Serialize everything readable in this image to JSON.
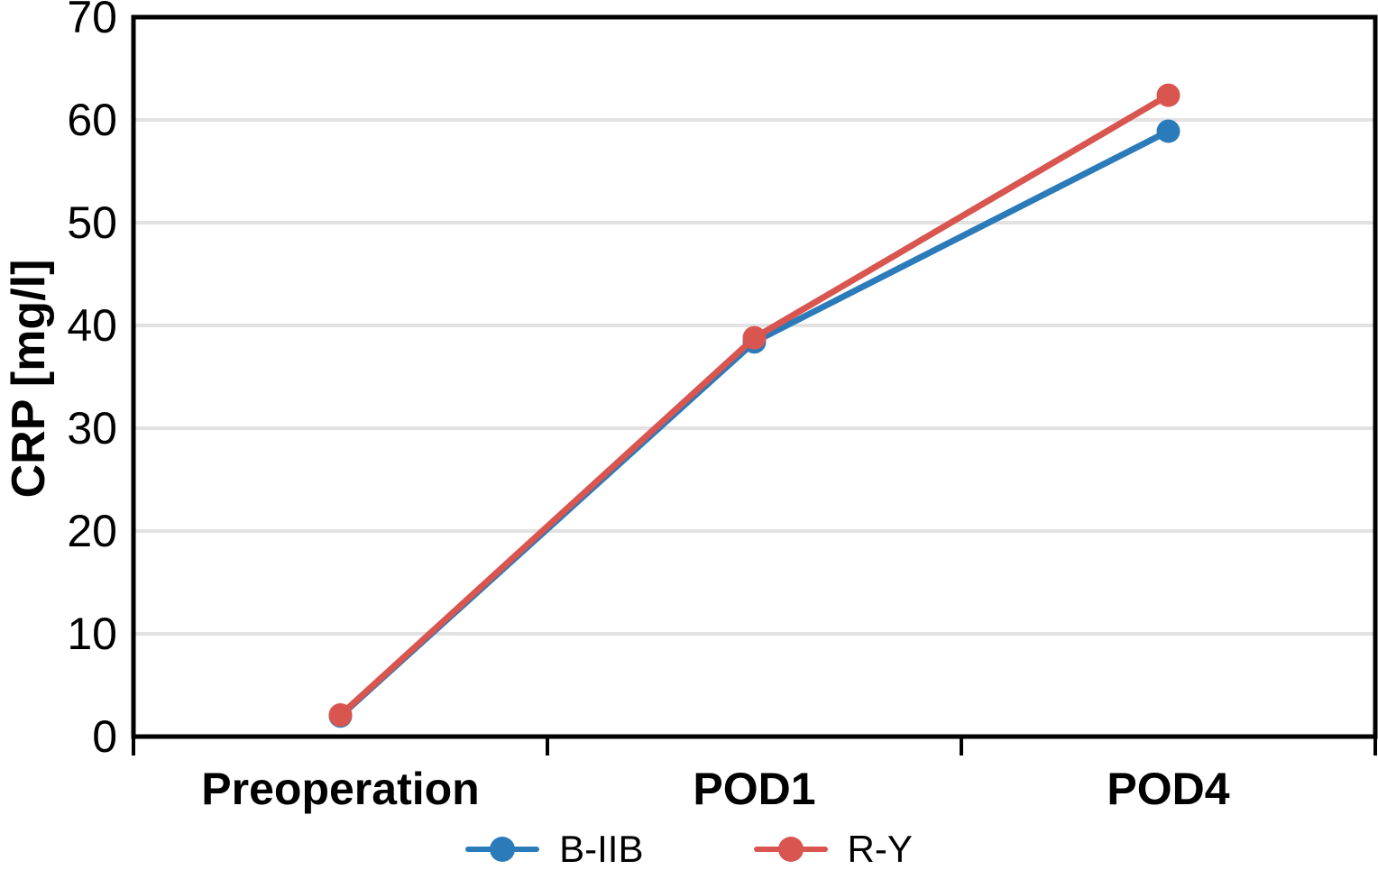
{
  "chart_data": {
    "type": "line",
    "title": "",
    "categories": [
      "Preoperation",
      "POD1",
      "POD4"
    ],
    "series": [
      {
        "name": "B-IIB",
        "color": "#2B7BBA",
        "values": [
          2.0,
          38.4,
          58.9
        ]
      },
      {
        "name": "R-Y",
        "color": "#D95550",
        "values": [
          2.1,
          38.8,
          62.4
        ]
      }
    ],
    "xlabel": "",
    "ylabel": "CRP [mg/l]",
    "ylim": [
      0,
      70
    ],
    "yticks": [
      0,
      10,
      20,
      30,
      40,
      50,
      60,
      70
    ],
    "grid": "horizontal gridlines at each y tick",
    "legend_position": "bottom center",
    "colors": {
      "axis": "#000000",
      "gridline": "#e2e2e2",
      "background": "#ffffff",
      "text": "#000000"
    }
  }
}
